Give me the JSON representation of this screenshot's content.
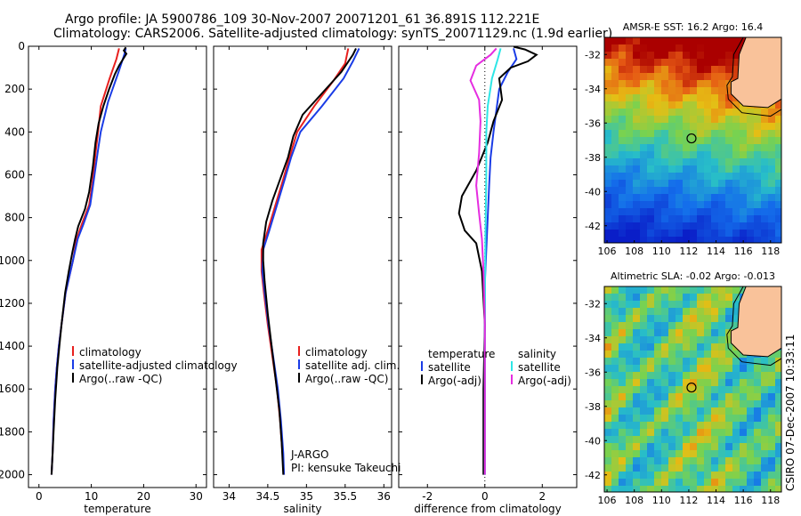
{
  "title_line1": "Argo profile: JA 5900786_109 30-Nov-2007 20071201_61 36.891S 112.221E",
  "title_line2": "Climatology: CARS2006. Satellite-adjusted climatology: synTS_20071129.nc (1.9d earlier)",
  "colors": {
    "climatology": "#e8201e",
    "satellite": "#1a3ce6",
    "argo": "#000000",
    "sat_sal": "#2de6e6",
    "argo_sal": "#e52de0"
  },
  "chart_data": [
    {
      "type": "line",
      "xlabel": "temperature",
      "ylim": [
        2060,
        0
      ],
      "xlim": [
        -2,
        32
      ],
      "xticks": [
        0,
        10,
        20,
        30
      ],
      "yticks": [
        0,
        200,
        400,
        600,
        800,
        1000,
        1200,
        1400,
        1600,
        1800,
        2000
      ],
      "legend": [
        "climatology",
        "satellite-adjusted climatology",
        "Argo(..raw -QC)"
      ],
      "series": [
        {
          "name": "climatology",
          "color": "climatology",
          "points": [
            [
              15.3,
              10
            ],
            [
              14.8,
              60
            ],
            [
              13.5,
              150
            ],
            [
              11.8,
              280
            ],
            [
              11.3,
              400
            ],
            [
              10.8,
              500
            ],
            [
              10.2,
              640
            ],
            [
              9.6,
              740
            ],
            [
              8.2,
              830
            ],
            [
              7.2,
              900
            ],
            [
              6.5,
              1000
            ],
            [
              5.1,
              1150
            ],
            [
              4.3,
              1300
            ],
            [
              3.8,
              1400
            ],
            [
              3.4,
              1500
            ],
            [
              3.1,
              1600
            ],
            [
              2.8,
              1750
            ],
            [
              2.6,
              1900
            ],
            [
              2.4,
              2000
            ]
          ]
        },
        {
          "name": "satellite-adjusted climatology",
          "color": "satellite",
          "points": [
            [
              16.6,
              10
            ],
            [
              16.3,
              40
            ],
            [
              15.2,
              120
            ],
            [
              13.2,
              260
            ],
            [
              11.8,
              400
            ],
            [
              11.2,
              500
            ],
            [
              10.4,
              640
            ],
            [
              9.8,
              740
            ],
            [
              8.5,
              830
            ],
            [
              7.4,
              900
            ],
            [
              6.5,
              1000
            ],
            [
              5.1,
              1150
            ],
            [
              4.3,
              1300
            ],
            [
              3.8,
              1400
            ],
            [
              3.4,
              1500
            ],
            [
              3.1,
              1600
            ],
            [
              2.8,
              1750
            ],
            [
              2.6,
              1900
            ],
            [
              2.4,
              2000
            ]
          ]
        },
        {
          "name": "Argo(..raw -QC)",
          "color": "argo",
          "points": [
            [
              16.6,
              5
            ],
            [
              16.2,
              20
            ],
            [
              16.7,
              35
            ],
            [
              15.3,
              90
            ],
            [
              14.5,
              130
            ],
            [
              13.4,
              200
            ],
            [
              12.3,
              280
            ],
            [
              11.4,
              360
            ],
            [
              10.8,
              450
            ],
            [
              10.3,
              560
            ],
            [
              9.6,
              680
            ],
            [
              8.8,
              760
            ],
            [
              7.5,
              840
            ],
            [
              6.9,
              900
            ],
            [
              6.4,
              960
            ],
            [
              5.7,
              1050
            ],
            [
              5.0,
              1150
            ],
            [
              4.3,
              1300
            ],
            [
              3.9,
              1400
            ],
            [
              3.5,
              1500
            ],
            [
              3.1,
              1650
            ],
            [
              2.8,
              1800
            ],
            [
              2.6,
              1900
            ],
            [
              2.4,
              2000
            ]
          ]
        }
      ]
    },
    {
      "type": "line",
      "xlabel": "salinity",
      "ylim": [
        2060,
        0
      ],
      "xlim": [
        33.8,
        36.1
      ],
      "xticks": [
        34,
        34.5,
        35,
        35.5,
        36
      ],
      "legend": [
        "climatology",
        "satellite adj. clim.",
        "Argo(..raw -QC)"
      ],
      "annotations": [
        "J-ARGO",
        "PI: kensuke Takeuchi"
      ],
      "series": [
        {
          "name": "climatology",
          "color": "climatology",
          "points": [
            [
              35.54,
              10
            ],
            [
              35.5,
              80
            ],
            [
              35.35,
              160
            ],
            [
              35.1,
              280
            ],
            [
              34.88,
              400
            ],
            [
              34.78,
              520
            ],
            [
              34.7,
              620
            ],
            [
              34.6,
              740
            ],
            [
              34.5,
              860
            ],
            [
              34.42,
              950
            ],
            [
              34.42,
              1050
            ],
            [
              34.45,
              1150
            ],
            [
              34.5,
              1300
            ],
            [
              34.56,
              1450
            ],
            [
              34.62,
              1600
            ],
            [
              34.66,
              1750
            ],
            [
              34.69,
              1900
            ],
            [
              34.71,
              2000
            ]
          ]
        },
        {
          "name": "satellite adj. clim.",
          "color": "satellite",
          "points": [
            [
              35.68,
              10
            ],
            [
              35.6,
              70
            ],
            [
              35.48,
              150
            ],
            [
              35.2,
              280
            ],
            [
              34.92,
              400
            ],
            [
              34.8,
              520
            ],
            [
              34.72,
              620
            ],
            [
              34.62,
              740
            ],
            [
              34.52,
              860
            ],
            [
              34.44,
              950
            ],
            [
              34.43,
              1050
            ],
            [
              34.46,
              1150
            ],
            [
              34.51,
              1300
            ],
            [
              34.57,
              1450
            ],
            [
              34.63,
              1600
            ],
            [
              34.67,
              1750
            ],
            [
              34.7,
              1900
            ],
            [
              34.71,
              2000
            ]
          ]
        },
        {
          "name": "Argo(..raw -QC)",
          "color": "argo",
          "points": [
            [
              35.64,
              10
            ],
            [
              35.6,
              40
            ],
            [
              35.45,
              120
            ],
            [
              35.2,
              220
            ],
            [
              34.95,
              320
            ],
            [
              34.83,
              420
            ],
            [
              34.76,
              520
            ],
            [
              34.66,
              620
            ],
            [
              34.56,
              720
            ],
            [
              34.48,
              820
            ],
            [
              34.44,
              920
            ],
            [
              34.44,
              1000
            ],
            [
              34.46,
              1100
            ],
            [
              34.5,
              1250
            ],
            [
              34.55,
              1400
            ],
            [
              34.6,
              1550
            ],
            [
              34.65,
              1700
            ],
            [
              34.68,
              1850
            ],
            [
              34.7,
              2000
            ]
          ]
        }
      ]
    },
    {
      "type": "line",
      "xlabel": "difference from climatology",
      "ylim": [
        2060,
        0
      ],
      "xlim": [
        -3,
        3.2
      ],
      "xticks": [
        -2,
        0,
        2
      ],
      "legend_left": [
        "temperature",
        "satellite",
        "Argo(-adj)"
      ],
      "legend_right": [
        "salinity",
        "satellite",
        "Argo(-adj)"
      ],
      "series": [
        {
          "name": "temperature satellite",
          "color": "satellite",
          "points": [
            [
              1.0,
              10
            ],
            [
              1.1,
              60
            ],
            [
              0.8,
              120
            ],
            [
              0.5,
              200
            ],
            [
              0.4,
              300
            ],
            [
              0.3,
              400
            ],
            [
              0.2,
              520
            ],
            [
              0.15,
              650
            ],
            [
              0.1,
              800
            ],
            [
              0.05,
              950
            ],
            [
              0.0,
              1100
            ],
            [
              0.0,
              2000
            ]
          ]
        },
        {
          "name": "temperature Argo(-adj)",
          "color": "argo",
          "points": [
            [
              1.0,
              2
            ],
            [
              1.4,
              15
            ],
            [
              1.8,
              40
            ],
            [
              1.5,
              70
            ],
            [
              0.9,
              100
            ],
            [
              0.5,
              150
            ],
            [
              0.6,
              250
            ],
            [
              0.3,
              350
            ],
            [
              0.1,
              450
            ],
            [
              -0.3,
              580
            ],
            [
              -0.8,
              700
            ],
            [
              -0.9,
              780
            ],
            [
              -0.7,
              860
            ],
            [
              -0.3,
              920
            ],
            [
              -0.1,
              1050
            ],
            [
              0.0,
              1300
            ],
            [
              -0.05,
              1600
            ],
            [
              -0.05,
              2000
            ]
          ]
        },
        {
          "name": "salinity satellite",
          "color": "sat_sal",
          "points": [
            [
              0.55,
              10
            ],
            [
              0.45,
              60
            ],
            [
              0.25,
              150
            ],
            [
              0.1,
              280
            ],
            [
              0.05,
              400
            ],
            [
              0.05,
              600
            ],
            [
              0.02,
              900
            ],
            [
              0.0,
              1200
            ],
            [
              0.0,
              2000
            ]
          ]
        },
        {
          "name": "salinity Argo(-adj)",
          "color": "argo_sal",
          "points": [
            [
              0.4,
              10
            ],
            [
              0.2,
              40
            ],
            [
              -0.3,
              90
            ],
            [
              -0.5,
              160
            ],
            [
              -0.2,
              250
            ],
            [
              -0.15,
              350
            ],
            [
              -0.2,
              500
            ],
            [
              -0.3,
              650
            ],
            [
              -0.2,
              780
            ],
            [
              -0.1,
              900
            ],
            [
              -0.05,
              1050
            ],
            [
              0.0,
              1300
            ],
            [
              0.0,
              2000
            ]
          ]
        }
      ]
    },
    {
      "type": "heatmap",
      "title": "AMSR-E SST: 16.2 Argo: 16.4",
      "xlim": [
        105.8,
        118.8
      ],
      "ylim": [
        -43,
        -31
      ],
      "xticks": [
        106,
        108,
        110,
        112,
        114,
        116,
        118
      ],
      "yticks": [
        -32,
        -34,
        -36,
        -38,
        -40,
        -42
      ],
      "marker": [
        112.2,
        -36.9
      ]
    },
    {
      "type": "heatmap",
      "title": "Altimetric SLA: -0.02 Argo: -0.013",
      "xlim": [
        105.8,
        118.8
      ],
      "ylim": [
        -43,
        -31
      ],
      "xticks": [
        106,
        108,
        110,
        112,
        114,
        116,
        118
      ],
      "yticks": [
        -32,
        -34,
        -36,
        -38,
        -40,
        -42
      ],
      "marker": [
        112.2,
        -36.9
      ]
    }
  ],
  "side_label": "CSIRO 07-Dec-2007 10:33:11"
}
